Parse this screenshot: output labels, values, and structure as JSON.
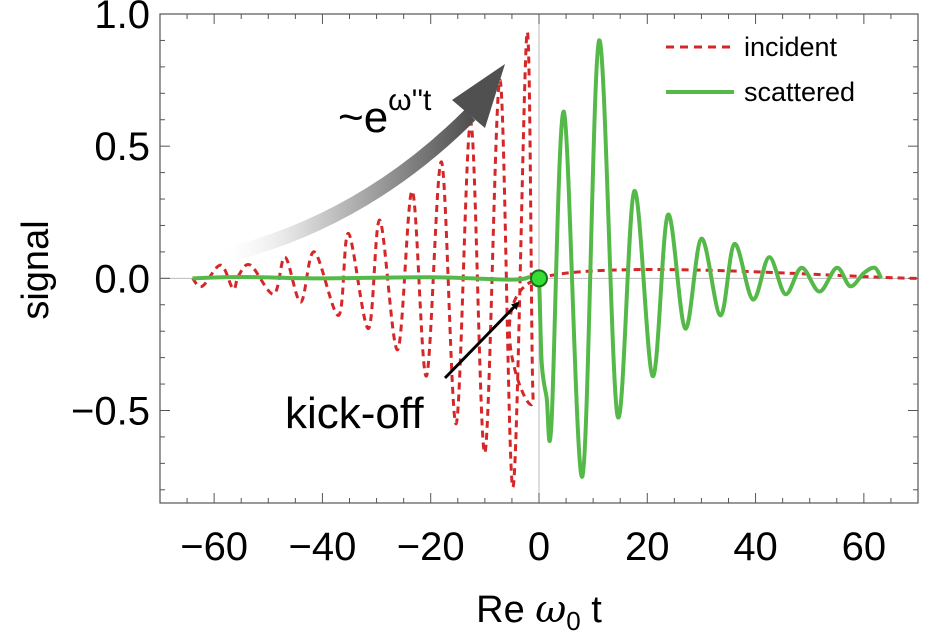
{
  "chart_data": {
    "type": "line",
    "title": "",
    "xlabel": {
      "prefix": "Re ",
      "symbol": "ω",
      "subscript": "0",
      "suffix": " t"
    },
    "ylabel": "signal",
    "xlim": [
      -70,
      70
    ],
    "ylim": [
      -0.85,
      1.0
    ],
    "xticks": [
      -60,
      -40,
      -20,
      0,
      20,
      40,
      60
    ],
    "xtick_labels": [
      "−60",
      "−40",
      "−20",
      "0",
      "20",
      "40",
      "60"
    ],
    "yticks": [
      -0.5,
      0.0,
      0.5,
      1.0
    ],
    "ytick_labels": [
      "−0.5",
      "0.0",
      "0.5",
      "1.0"
    ],
    "grid": false,
    "legend": "top-right",
    "series": [
      {
        "name": "incident",
        "color": "#d62728",
        "style": "dashed",
        "x": [
          -64,
          -62.2,
          -58.8,
          -56.5,
          -55.5,
          -53.3,
          -49,
          -46.9,
          -44,
          -41.5,
          -37,
          -35.2,
          -31.5,
          -29.4,
          -26.1,
          -23.4,
          -20.8,
          -18,
          -15.3,
          -12.6,
          -10,
          -7.2,
          -4.8,
          -2.2,
          -1.1,
          0,
          70
        ],
        "values": [
          0,
          -0.03,
          0.05,
          -0.04,
          0.01,
          0.05,
          -0.06,
          0.08,
          -0.09,
          0.1,
          -0.14,
          0.17,
          -0.19,
          0.22,
          -0.27,
          0.33,
          -0.37,
          0.44,
          -0.55,
          0.59,
          -0.66,
          0.75,
          -0.79,
          0.93,
          -0.45,
          0,
          0
        ]
      },
      {
        "name": "scattered",
        "color": "#55b949",
        "style": "solid",
        "x": [
          -64,
          -55,
          -40,
          -20,
          -5,
          -1.5,
          -0.5,
          0,
          0.5,
          1.4,
          2.3,
          4.6,
          8,
          11.1,
          14.5,
          17.6,
          21,
          23.8,
          27,
          30,
          33.5,
          36.1,
          39.5,
          42.5,
          45.5,
          48.5,
          51.8,
          55,
          57.5,
          60,
          62,
          63.2
        ],
        "values": [
          0,
          0.005,
          0,
          0.004,
          -0.005,
          0.005,
          -0.01,
          0,
          -0.32,
          -0.45,
          -0.55,
          0.63,
          -0.75,
          0.9,
          -0.52,
          0.33,
          -0.37,
          0.24,
          -0.19,
          0.15,
          -0.14,
          0.13,
          -0.08,
          0.08,
          -0.06,
          0.04,
          -0.05,
          0.04,
          -0.03,
          0.02,
          0.04,
          0
        ]
      }
    ],
    "marker": {
      "x": 0,
      "y": 0,
      "color": "#33dd33"
    },
    "annotations": [
      {
        "type": "growth-arrow",
        "label_base": "~e",
        "label_sup": "ω''t"
      },
      {
        "type": "pointer-arrow",
        "label": "kick-off"
      }
    ]
  }
}
